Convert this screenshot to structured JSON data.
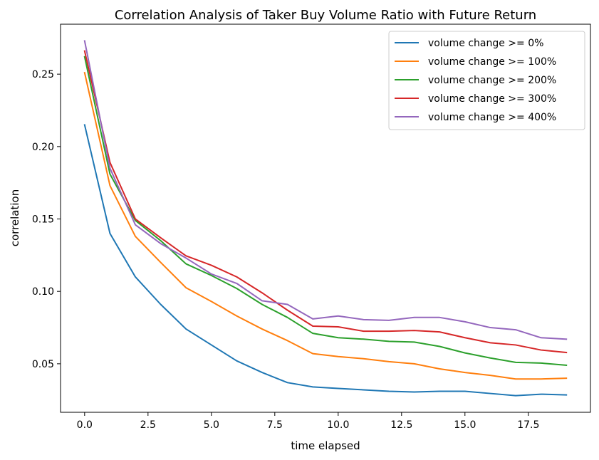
{
  "chart_data": {
    "type": "line",
    "title": "Correlation Analysis of Taker Buy Volume Ratio with Future Return",
    "xlabel": "time elapsed",
    "ylabel": "correlation",
    "xlim": [
      -0.95,
      19.95
    ],
    "ylim": [
      0.0165,
      0.2845
    ],
    "xticks": [
      0.0,
      2.5,
      5.0,
      7.5,
      10.0,
      12.5,
      15.0,
      17.5
    ],
    "xtick_labels": [
      "0.0",
      "2.5",
      "5.0",
      "7.5",
      "10.0",
      "12.5",
      "15.0",
      "17.5"
    ],
    "yticks": [
      0.05,
      0.1,
      0.15,
      0.2,
      0.25
    ],
    "ytick_labels": [
      "0.05",
      "0.10",
      "0.15",
      "0.20",
      "0.25"
    ],
    "grid": false,
    "legend_position": "top-right",
    "x": [
      0,
      1,
      2,
      3,
      4,
      5,
      6,
      7,
      8,
      9,
      10,
      11,
      12,
      13,
      14,
      15,
      16,
      17,
      18,
      19
    ],
    "series": [
      {
        "name": "volume change >= 0%",
        "color": "#1f77b4",
        "values": [
          0.215,
          0.14,
          0.11,
          0.091,
          0.074,
          0.063,
          0.052,
          0.044,
          0.037,
          0.034,
          0.033,
          0.032,
          0.031,
          0.0305,
          0.031,
          0.031,
          0.0295,
          0.028,
          0.029,
          0.0285
        ]
      },
      {
        "name": "volume change >= 100%",
        "color": "#ff7f0e",
        "values": [
          0.251,
          0.173,
          0.138,
          0.12,
          0.1025,
          0.093,
          0.083,
          0.074,
          0.066,
          0.057,
          0.055,
          0.0535,
          0.0515,
          0.05,
          0.0465,
          0.044,
          0.042,
          0.0395,
          0.0395,
          0.04
        ]
      },
      {
        "name": "volume change >= 200%",
        "color": "#2ca02c",
        "values": [
          0.262,
          0.181,
          0.149,
          0.135,
          0.119,
          0.111,
          0.102,
          0.091,
          0.082,
          0.071,
          0.068,
          0.067,
          0.0655,
          0.065,
          0.062,
          0.0575,
          0.054,
          0.051,
          0.0505,
          0.049
        ]
      },
      {
        "name": "volume change >= 300%",
        "color": "#d62728",
        "values": [
          0.266,
          0.189,
          0.15,
          0.137,
          0.1245,
          0.118,
          0.11,
          0.099,
          0.087,
          0.076,
          0.0755,
          0.0725,
          0.0725,
          0.073,
          0.072,
          0.068,
          0.0645,
          0.063,
          0.0595,
          0.0578
        ]
      },
      {
        "name": "volume change >= 400%",
        "color": "#9467bd",
        "values": [
          0.273,
          0.185,
          0.146,
          0.133,
          0.123,
          0.112,
          0.1055,
          0.0935,
          0.091,
          0.081,
          0.083,
          0.0805,
          0.08,
          0.082,
          0.082,
          0.079,
          0.075,
          0.0735,
          0.068,
          0.067
        ]
      }
    ]
  }
}
